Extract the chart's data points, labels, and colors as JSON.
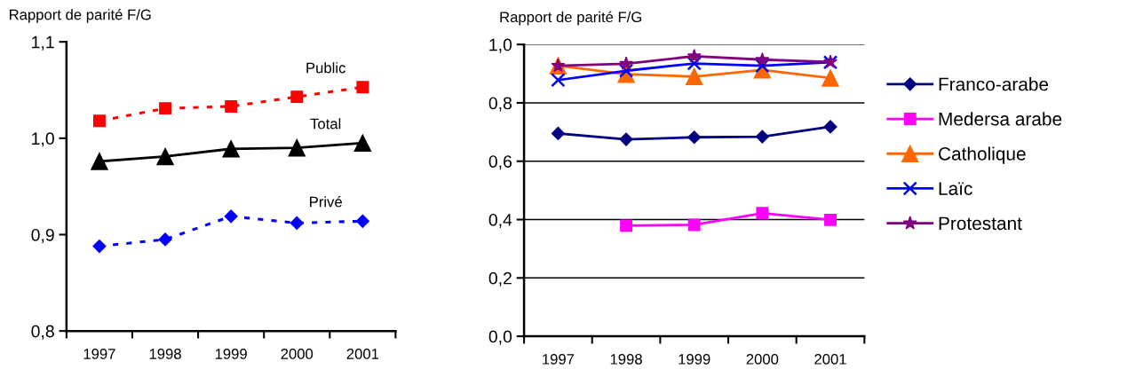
{
  "chart_data": [
    {
      "type": "line",
      "ylabel": "Rapport de parité F/G",
      "categories": [
        "1997",
        "1998",
        "1999",
        "2000",
        "2001"
      ],
      "ylim": [
        0.8,
        1.1
      ],
      "yticks": [
        {
          "value": 0.8,
          "label": "0,8"
        },
        {
          "value": 0.9,
          "label": "0,9"
        },
        {
          "value": 1.0,
          "label": "1,0"
        },
        {
          "value": 1.1,
          "label": "1,1"
        }
      ],
      "grid": false,
      "legend": false,
      "series": [
        {
          "name": "Public",
          "color": "#ff0000",
          "marker": "square",
          "line_style": "dotted",
          "values": [
            1.018,
            1.031,
            1.033,
            1.043,
            1.053
          ]
        },
        {
          "name": "Total",
          "color": "#000000",
          "marker": "triangle",
          "line_style": "solid",
          "values": [
            0.976,
            0.981,
            0.989,
            0.99,
            0.995
          ]
        },
        {
          "name": "Privé",
          "color": "#0000ff",
          "marker": "diamond",
          "line_style": "dotted",
          "values": [
            0.888,
            0.895,
            0.919,
            0.912,
            0.914
          ]
        }
      ]
    },
    {
      "type": "line",
      "ylabel": "Rapport de parité F/G",
      "categories": [
        "1997",
        "1998",
        "1999",
        "2000",
        "2001"
      ],
      "ylim": [
        0.0,
        1.0
      ],
      "yticks": [
        {
          "value": 0.0,
          "label": "0,0"
        },
        {
          "value": 0.2,
          "label": "0,2"
        },
        {
          "value": 0.4,
          "label": "0,4"
        },
        {
          "value": 0.6,
          "label": "0,6"
        },
        {
          "value": 0.8,
          "label": "0,8"
        },
        {
          "value": 1.0,
          "label": "1,0"
        }
      ],
      "grid": "y",
      "legend": "right",
      "series": [
        {
          "name": "Franco-arabe",
          "color": "#000080",
          "marker": "diamond",
          "values": [
            0.695,
            0.675,
            0.682,
            0.684,
            0.718
          ]
        },
        {
          "name": "Medersa arabe",
          "color": "#ff00ff",
          "marker": "square",
          "values": [
            null,
            0.379,
            0.382,
            0.422,
            0.399
          ]
        },
        {
          "name": "Catholique",
          "color": "#ff6600",
          "marker": "triangle",
          "values": [
            0.927,
            0.898,
            0.89,
            0.913,
            0.885
          ]
        },
        {
          "name": "Laïc",
          "color": "#0000ff",
          "marker": "cross",
          "values": [
            0.878,
            0.91,
            0.935,
            0.927,
            0.939
          ]
        },
        {
          "name": "Protestant",
          "color": "#800080",
          "marker": "star",
          "values": [
            0.927,
            0.934,
            0.96,
            0.948,
            0.94
          ]
        }
      ]
    }
  ]
}
